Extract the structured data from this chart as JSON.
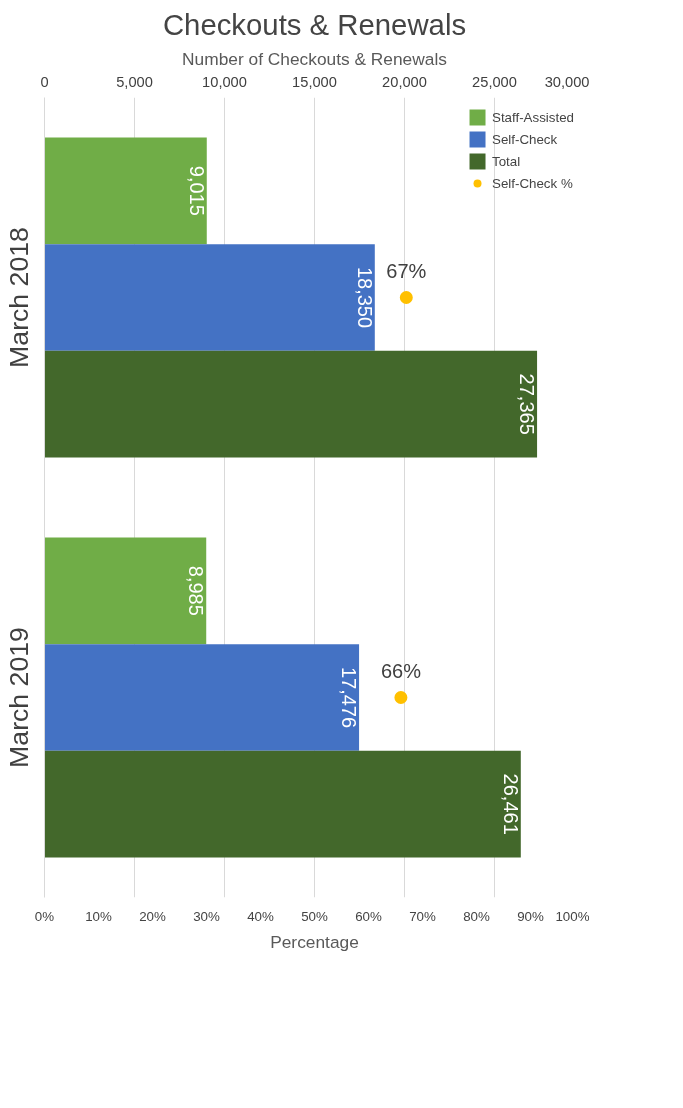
{
  "chart_data": {
    "type": "bar",
    "orientation": "horizontal",
    "title": "Checkouts & Renewals",
    "xlabel": "Number of Checkouts & Renewals",
    "x2label": "Percentage",
    "categories": [
      "March 2018",
      "March 2019"
    ],
    "series": [
      {
        "name": "Staff-Assisted",
        "color": "#70ad47",
        "values": [
          9015,
          8985
        ],
        "value_labels": [
          "9,015",
          "8,985"
        ]
      },
      {
        "name": "Self-Check",
        "color": "#4472c4",
        "values": [
          18350,
          17476
        ],
        "value_labels": [
          "18,350",
          "17,476"
        ]
      },
      {
        "name": "Total",
        "color": "#43682b",
        "values": [
          27365,
          26461
        ],
        "value_labels": [
          "27,365",
          "26,461"
        ]
      },
      {
        "name": "Self-Check %",
        "type": "scatter",
        "axis": "x2",
        "marker": "circle",
        "color": "#ffc000",
        "values": [
          67,
          66
        ],
        "value_labels": [
          "67%",
          "66%"
        ]
      }
    ],
    "xlim": [
      0,
      30000
    ],
    "xticks": [
      0,
      {
        "value": 5000,
        "label": "5,000"
      },
      {
        "value": 10000,
        "label": "10,000"
      },
      {
        "value": 15000,
        "label": "15,000"
      },
      {
        "value": 20000,
        "label": "20,000"
      },
      {
        "value": 25000,
        "label": "25,000"
      },
      {
        "value": 30000,
        "label": "30,000"
      }
    ],
    "x2lim": [
      0,
      100
    ],
    "x2ticks": [
      {
        "value": 0,
        "label": "0%"
      },
      {
        "value": 10,
        "label": "10%"
      },
      {
        "value": 20,
        "label": "20%"
      },
      {
        "value": 30,
        "label": "30%"
      },
      {
        "value": 40,
        "label": "40%"
      },
      {
        "value": 50,
        "label": "50%"
      },
      {
        "value": 60,
        "label": "60%"
      },
      {
        "value": 70,
        "label": "70%"
      },
      {
        "value": 80,
        "label": "80%"
      },
      {
        "value": 90,
        "label": "90%"
      },
      {
        "value": 100,
        "label": "100%"
      }
    ],
    "grid": "x",
    "legend": "top right"
  }
}
